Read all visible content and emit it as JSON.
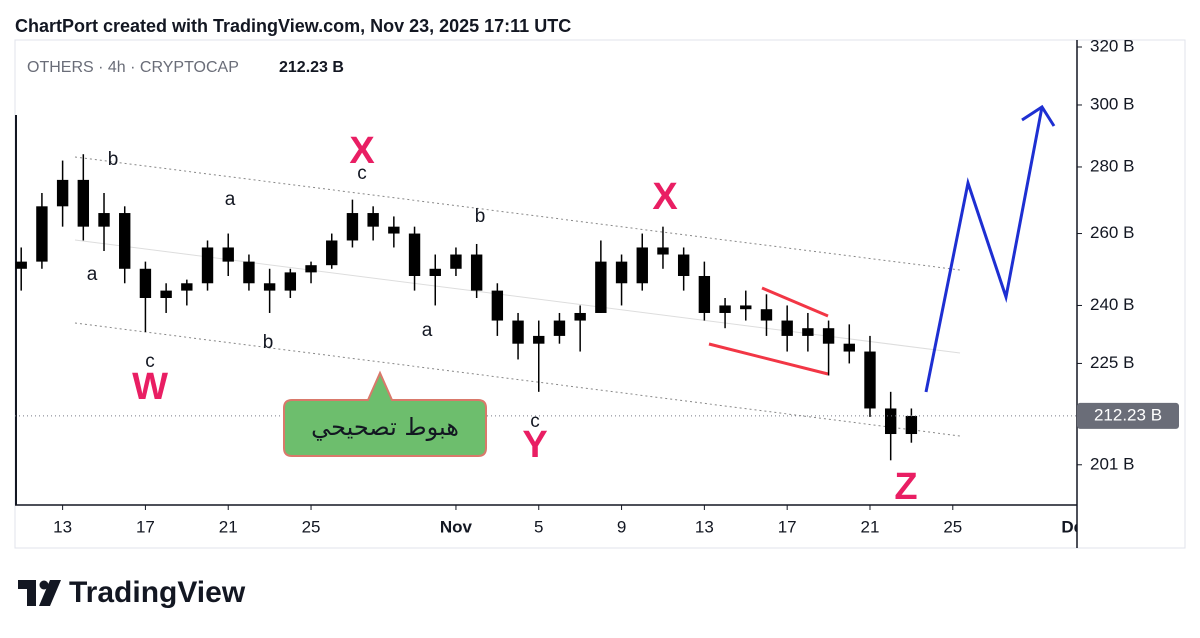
{
  "header": "ChartPort created with TradingView.com, Nov 23, 2025 17:11 UTC",
  "legend": "OTHERS · 4h · CRYPTOCAP",
  "logo": "TradingView",
  "callout": "هبوط تصحيحي",
  "annotations": [
    "b",
    "a",
    "c",
    "W",
    "a",
    "b",
    "X",
    "c",
    "a",
    "b",
    "c",
    "Y",
    "X",
    "Z"
  ],
  "chart_data": {
    "type": "candlestick",
    "up_color": "#000000",
    "down_color": "#000000",
    "log_scale": true,
    "last_price": {
      "value": 212.23,
      "label": "212.23 B"
    },
    "x": [
      11,
      12,
      13,
      14,
      15,
      16,
      17,
      18,
      19,
      20,
      21,
      22,
      23,
      24,
      25,
      26,
      27,
      28,
      29,
      30,
      31,
      32,
      33,
      34,
      35,
      36,
      37,
      38,
      39,
      40,
      41,
      42,
      43,
      44,
      45,
      46,
      47,
      48,
      49,
      50,
      51,
      52,
      53,
      54
    ],
    "open": [
      250,
      252,
      268,
      276,
      262,
      266,
      250,
      242,
      244,
      246,
      256,
      252,
      246,
      244,
      249,
      251,
      258,
      266,
      262,
      260,
      248,
      250,
      254,
      244,
      236,
      230,
      232,
      236,
      238,
      252,
      246,
      256,
      254,
      248,
      238,
      240,
      239,
      236,
      232,
      234,
      230,
      228,
      214,
      208
    ],
    "high": [
      256,
      272,
      282,
      284,
      272,
      268,
      252,
      246,
      247,
      258,
      260,
      254,
      250,
      250,
      252,
      260,
      270,
      268,
      265,
      262,
      254,
      256,
      257,
      246,
      238,
      236,
      238,
      240,
      258,
      254,
      260,
      262,
      256,
      252,
      242,
      244,
      243,
      240,
      238,
      236,
      235,
      232,
      218,
      214
    ],
    "low": [
      244,
      250,
      262,
      258,
      255,
      246,
      233,
      238,
      240,
      244,
      248,
      244,
      238,
      242,
      246,
      250,
      256,
      258,
      256,
      244,
      240,
      248,
      242,
      232,
      226,
      218,
      230,
      228,
      238,
      240,
      244,
      250,
      244,
      236,
      234,
      236,
      232,
      228,
      228,
      222,
      225,
      212,
      202,
      206
    ],
    "close": [
      252,
      268,
      276,
      262,
      266,
      250,
      242,
      244,
      246,
      256,
      252,
      246,
      244,
      249,
      251,
      258,
      266,
      262,
      260,
      248,
      250,
      254,
      244,
      236,
      230,
      232,
      236,
      238,
      252,
      246,
      256,
      254,
      248,
      238,
      240,
      239,
      236,
      232,
      234,
      230,
      228,
      214,
      208,
      212.23
    ],
    "xlim": [
      10.7,
      62
    ],
    "xticks": [
      13,
      17,
      21,
      25,
      {
        "value": 32,
        "label": "Nov"
      },
      {
        "value": 36,
        "label": "5"
      },
      {
        "value": 40,
        "label": "9"
      },
      {
        "value": 44,
        "label": "13"
      },
      {
        "value": 48,
        "label": "17"
      },
      {
        "value": 52,
        "label": "21"
      },
      {
        "value": 56,
        "label": "25"
      },
      {
        "value": 62,
        "label": "Dec"
      }
    ],
    "ylim": [
      192.2,
      322.5
    ],
    "yticks": [
      {
        "value": 201,
        "label": "201 B"
      },
      {
        "value": 225,
        "label": "225 B"
      },
      {
        "value": 240,
        "label": "240 B"
      },
      {
        "value": 260,
        "label": "260 B"
      },
      {
        "value": 280,
        "label": "280 B"
      },
      {
        "value": 300,
        "label": "300 B"
      },
      {
        "value": 320,
        "label": "320 B"
      }
    ]
  }
}
